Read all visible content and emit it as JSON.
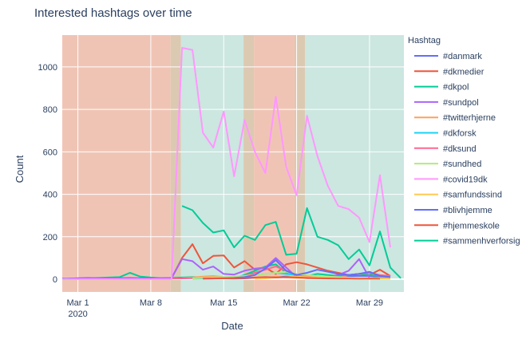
{
  "chart_data": {
    "type": "line",
    "title": "Interested hashtags over time",
    "xlabel": "Date",
    "ylabel": "Count",
    "x_ticks": [
      {
        "day": 1,
        "label": "Mar 1",
        "sublabel": "2020"
      },
      {
        "day": 8,
        "label": "Mar 8",
        "sublabel": ""
      },
      {
        "day": 15,
        "label": "Mar 15",
        "sublabel": ""
      },
      {
        "day": 22,
        "label": "Mar 22",
        "sublabel": ""
      },
      {
        "day": 29,
        "label": "Mar 29",
        "sublabel": ""
      }
    ],
    "y_ticks": [
      0,
      200,
      400,
      600,
      800,
      1000
    ],
    "xlim_day": [
      -0.5,
      32.3
    ],
    "ylim": [
      -60,
      1150
    ],
    "grid": true,
    "legend": {
      "title": "Hashtag",
      "position": "right"
    },
    "background_bands": [
      {
        "from": -0.5,
        "to": 9.9,
        "color": "#f0c4b5"
      },
      {
        "from": 9.9,
        "to": 10.9,
        "color": "#dcc9b2"
      },
      {
        "from": 10.9,
        "to": 16.9,
        "color": "#cce6e0"
      },
      {
        "from": 16.9,
        "to": 17.9,
        "color": "#dcc9b2"
      },
      {
        "from": 17.9,
        "to": 21.8,
        "color": "#f0c4b5"
      },
      {
        "from": 21.8,
        "to": 22.8,
        "color": "#dcc9b2"
      },
      {
        "from": 22.8,
        "to": 32.3,
        "color": "#cce6e0"
      }
    ],
    "series": [
      {
        "name": "#danmark",
        "color": "#636efa",
        "x": [
          -1,
          0,
          1,
          2,
          3,
          4,
          5,
          6,
          7,
          8,
          9,
          10,
          11,
          12,
          13,
          14,
          15,
          16,
          17,
          18,
          19,
          20,
          21,
          22,
          23,
          24,
          25,
          26,
          27,
          28,
          29,
          30,
          31
        ],
        "y": [
          3,
          2,
          3,
          3,
          4,
          3,
          4,
          3,
          4,
          5,
          4,
          4,
          6,
          7,
          6,
          5,
          4,
          3,
          4,
          7,
          8,
          10,
          12,
          10,
          6,
          8,
          10,
          12,
          14,
          16,
          15,
          14,
          12
        ]
      },
      {
        "name": "#dkmedier",
        "color": "#ef553b",
        "x": [
          -1,
          0,
          1,
          2,
          3,
          4,
          5,
          6,
          7,
          8,
          9,
          10,
          11,
          12,
          13,
          14,
          15,
          16,
          17,
          18,
          19,
          20,
          21,
          22,
          23,
          24,
          25,
          26,
          27,
          28,
          29,
          30,
          31
        ],
        "y": [
          2,
          2,
          2,
          3,
          3,
          2,
          3,
          3,
          4,
          3,
          4,
          5,
          100,
          165,
          75,
          110,
          112,
          55,
          85,
          45,
          55,
          25,
          70,
          80,
          70,
          55,
          40,
          30,
          20,
          25,
          20,
          45,
          15
        ]
      },
      {
        "name": "#dkpol",
        "color": "#00cc96",
        "x": [
          -1,
          0,
          1,
          2,
          3,
          4,
          5,
          6,
          7,
          8,
          9,
          10,
          11,
          12,
          13,
          14,
          15,
          16,
          17,
          18,
          19,
          20,
          21,
          22,
          23,
          24,
          25,
          26,
          27,
          28,
          29,
          30,
          31
        ],
        "y": [
          3,
          3,
          4,
          5,
          6,
          8,
          10,
          30,
          12,
          8,
          5,
          6,
          8,
          10,
          9,
          8,
          6,
          5,
          20,
          40,
          60,
          70,
          30,
          20,
          15,
          25,
          20,
          15,
          20,
          25,
          20,
          15,
          10
        ]
      },
      {
        "name": "#sundpol",
        "color": "#ab63fa",
        "x": [
          -1,
          0,
          1,
          2,
          3,
          4,
          5,
          6,
          7,
          8,
          9,
          10,
          11,
          12,
          13,
          14,
          15,
          16,
          17,
          18,
          19,
          20,
          21,
          22,
          23,
          24,
          25,
          26,
          27,
          28,
          29,
          30,
          31
        ],
        "y": [
          2,
          2,
          5,
          6,
          5,
          4,
          5,
          6,
          5,
          4,
          5,
          6,
          95,
          85,
          45,
          60,
          25,
          22,
          40,
          50,
          55,
          100,
          55,
          10,
          5,
          5,
          10,
          20,
          40,
          95,
          5,
          10,
          8
        ]
      },
      {
        "name": "#twitterhjerne",
        "color": "#ffa15a",
        "x": [
          11,
          12,
          13,
          14,
          15,
          16,
          17,
          18,
          19,
          20,
          21,
          22,
          23,
          24,
          25,
          26,
          27,
          28,
          29,
          30,
          31
        ],
        "y": [
          5,
          8,
          12,
          15,
          10,
          6,
          8,
          6,
          5,
          12,
          8,
          6,
          5,
          4,
          3,
          4,
          5,
          3,
          4,
          6,
          4
        ]
      },
      {
        "name": "#dkforsk",
        "color": "#19d3f3",
        "x": [
          12,
          13,
          14,
          15,
          16,
          17,
          18,
          19,
          20,
          21,
          22,
          23,
          24,
          25,
          26,
          27,
          28,
          29,
          30,
          31
        ],
        "y": [
          2,
          3,
          4,
          6,
          10,
          15,
          20,
          25,
          30,
          25,
          20,
          18,
          15,
          10,
          8,
          6,
          5,
          4,
          3,
          2
        ]
      },
      {
        "name": "#dksund",
        "color": "#ff6692",
        "x": [
          10,
          11,
          12,
          13,
          14,
          15,
          16,
          17,
          18,
          19,
          20,
          21,
          22,
          23,
          24,
          25,
          26,
          27,
          28,
          29,
          30,
          31
        ],
        "y": [
          3,
          4,
          5,
          6,
          7,
          8,
          10,
          15,
          30,
          45,
          60,
          40,
          20,
          15,
          10,
          8,
          6,
          20,
          25,
          30,
          20,
          15
        ]
      },
      {
        "name": "#sundhed",
        "color": "#b6e880",
        "x": [
          12,
          13,
          14,
          15,
          16,
          17,
          18,
          19,
          20,
          21,
          22,
          23,
          24,
          25,
          26,
          27,
          28,
          29,
          30
        ],
        "y": [
          4,
          6,
          8,
          10,
          12,
          15,
          20,
          25,
          30,
          35,
          25,
          20,
          15,
          12,
          10,
          8,
          6,
          5,
          4
        ]
      },
      {
        "name": "#covid19dk",
        "color": "#ff97ff",
        "x": [
          -1,
          0,
          1,
          2,
          3,
          4,
          5,
          6,
          7,
          8,
          9,
          10,
          11,
          12,
          13,
          14,
          15,
          16,
          17,
          18,
          19,
          20,
          21,
          22,
          23,
          24,
          25,
          26,
          27,
          28,
          29,
          30,
          31
        ],
        "y": [
          0,
          0,
          0,
          0,
          0,
          0,
          0,
          0,
          0,
          0,
          0,
          0,
          1090,
          1080,
          690,
          620,
          790,
          485,
          750,
          600,
          500,
          860,
          530,
          395,
          770,
          580,
          440,
          345,
          330,
          290,
          175,
          490,
          150
        ]
      },
      {
        "name": "#samfundssind",
        "color": "#fecb52",
        "x": [
          18,
          19,
          20,
          21,
          22,
          23,
          24,
          25,
          26,
          27,
          28,
          29,
          30,
          31
        ],
        "y": [
          2,
          4,
          8,
          10,
          12,
          10,
          8,
          6,
          5,
          4,
          3,
          3,
          2,
          2
        ]
      },
      {
        "name": "#blivhjemme",
        "color": "#636efa",
        "x": [
          13,
          14,
          15,
          16,
          17,
          18,
          19,
          20,
          21,
          22,
          23,
          24,
          25,
          26,
          27,
          28,
          29,
          30,
          31
        ],
        "y": [
          3,
          4,
          5,
          6,
          10,
          20,
          50,
          90,
          40,
          20,
          30,
          45,
          35,
          25,
          20,
          25,
          35,
          15,
          10
        ]
      },
      {
        "name": "#hjemmeskole",
        "color": "#ef553b",
        "x": [
          13,
          14,
          15,
          16,
          17,
          18,
          19,
          20,
          21,
          22,
          23,
          24,
          25,
          26,
          27,
          28,
          29,
          30
        ],
        "y": [
          2,
          3,
          4,
          5,
          6,
          8,
          10,
          8,
          10,
          8,
          6,
          5,
          4,
          3,
          3,
          2,
          3,
          2
        ]
      },
      {
        "name": "#sammenhverforsig",
        "color": "#00cc96",
        "x": [
          11,
          12,
          13,
          14,
          15,
          16,
          17,
          18,
          19,
          20,
          21,
          22,
          23,
          24,
          25,
          26,
          27,
          28,
          29,
          30,
          31,
          32
        ],
        "y": [
          345,
          325,
          265,
          220,
          230,
          150,
          205,
          185,
          255,
          270,
          115,
          120,
          335,
          200,
          185,
          160,
          95,
          140,
          65,
          225,
          55,
          5
        ]
      }
    ]
  }
}
